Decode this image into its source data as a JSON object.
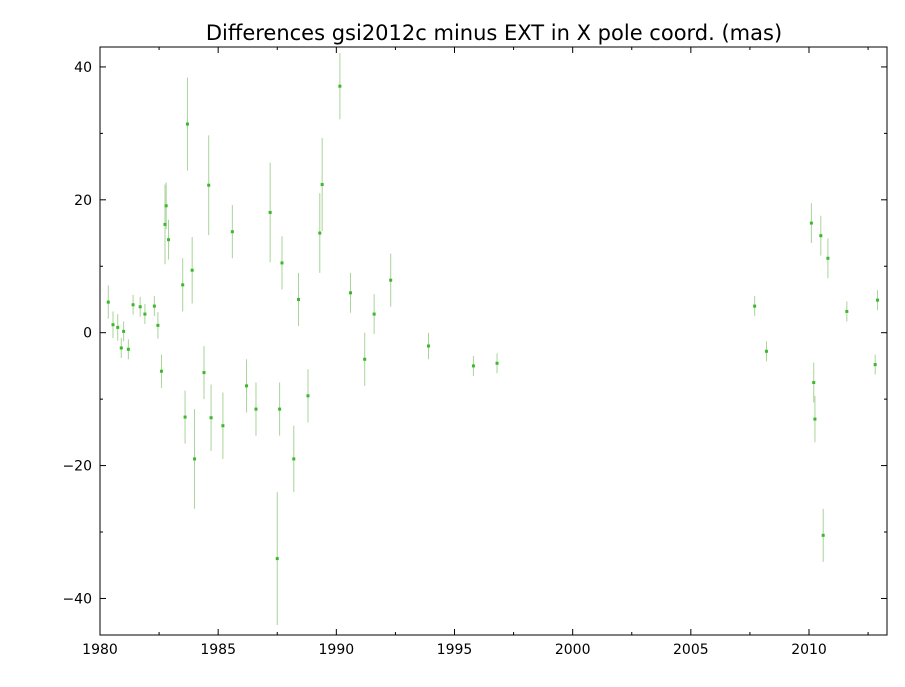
{
  "chart_data": {
    "type": "scatter",
    "title": "Differences gsi2012c minus EXT in X pole coord. (mas)",
    "xlabel": "",
    "ylabel": "",
    "xlim": [
      1980,
      2013.3
    ],
    "ylim": [
      -45.5,
      43
    ],
    "grid": false,
    "legend": "none",
    "x_ticks": [
      1980,
      1985,
      1990,
      1995,
      2000,
      2005,
      2010
    ],
    "y_ticks": [
      -40,
      -20,
      0,
      20,
      40
    ],
    "x_tick_labels": [
      "1980",
      "1985",
      "1990",
      "1995",
      "2000",
      "2005",
      "2010"
    ],
    "y_tick_labels": [
      "−40",
      "−20",
      "0",
      "20",
      "40"
    ],
    "point_color": "#3cb82c",
    "errorbar_color": "#a9d39a",
    "series": [
      {
        "points": [
          {
            "x": 1980.35,
            "y": 4.6,
            "err": 2.5
          },
          {
            "x": 1980.55,
            "y": 1.2,
            "err": 2.0
          },
          {
            "x": 1980.75,
            "y": 0.8,
            "err": 2.0
          },
          {
            "x": 1980.9,
            "y": -2.3,
            "err": 1.5
          },
          {
            "x": 1981.0,
            "y": 0.2,
            "err": 1.5
          },
          {
            "x": 1981.2,
            "y": -2.5,
            "err": 1.5
          },
          {
            "x": 1981.4,
            "y": 4.2,
            "err": 1.5
          },
          {
            "x": 1981.7,
            "y": 3.9,
            "err": 1.5
          },
          {
            "x": 1981.9,
            "y": 2.8,
            "err": 1.5
          },
          {
            "x": 1982.3,
            "y": 4.0,
            "err": 1.5
          },
          {
            "x": 1982.45,
            "y": 1.1,
            "err": 2.0
          },
          {
            "x": 1982.6,
            "y": -5.8,
            "err": 2.5
          },
          {
            "x": 1982.75,
            "y": 16.3,
            "err": 6.0
          },
          {
            "x": 1982.8,
            "y": 19.1,
            "err": 3.5
          },
          {
            "x": 1982.9,
            "y": 14.0,
            "err": 3.0
          },
          {
            "x": 1983.5,
            "y": 7.2,
            "err": 4.0
          },
          {
            "x": 1983.6,
            "y": -12.7,
            "err": 4.0
          },
          {
            "x": 1983.7,
            "y": 31.4,
            "err": 7.0
          },
          {
            "x": 1983.9,
            "y": 9.4,
            "err": 5.0
          },
          {
            "x": 1984.0,
            "y": -19.0,
            "err": 7.5
          },
          {
            "x": 1984.4,
            "y": -6.0,
            "err": 4.0
          },
          {
            "x": 1984.6,
            "y": 22.2,
            "err": 7.5
          },
          {
            "x": 1984.7,
            "y": -12.8,
            "err": 5.0
          },
          {
            "x": 1985.2,
            "y": -14.0,
            "err": 5.0
          },
          {
            "x": 1985.6,
            "y": 15.2,
            "err": 4.0
          },
          {
            "x": 1986.2,
            "y": -8.0,
            "err": 4.0
          },
          {
            "x": 1986.6,
            "y": -11.5,
            "err": 4.0
          },
          {
            "x": 1987.2,
            "y": 18.1,
            "err": 7.5
          },
          {
            "x": 1987.5,
            "y": -34.0,
            "err": 10.0
          },
          {
            "x": 1987.6,
            "y": -11.5,
            "err": 4.0
          },
          {
            "x": 1987.7,
            "y": 10.5,
            "err": 4.0
          },
          {
            "x": 1988.2,
            "y": -19.0,
            "err": 5.0
          },
          {
            "x": 1988.4,
            "y": 5.0,
            "err": 4.0
          },
          {
            "x": 1988.8,
            "y": -9.5,
            "err": 4.0
          },
          {
            "x": 1989.3,
            "y": 15.0,
            "err": 6.0
          },
          {
            "x": 1989.4,
            "y": 22.3,
            "err": 7.0
          },
          {
            "x": 1990.15,
            "y": 37.1,
            "err": 5.0
          },
          {
            "x": 1990.6,
            "y": 6.0,
            "err": 3.0
          },
          {
            "x": 1991.2,
            "y": -4.0,
            "err": 4.0
          },
          {
            "x": 1991.6,
            "y": 2.8,
            "err": 3.0
          },
          {
            "x": 1992.3,
            "y": 7.9,
            "err": 4.0
          },
          {
            "x": 1993.9,
            "y": -2.0,
            "err": 2.0
          },
          {
            "x": 1995.8,
            "y": -5.0,
            "err": 1.5
          },
          {
            "x": 1996.8,
            "y": -4.6,
            "err": 1.5
          },
          {
            "x": 2007.7,
            "y": 4.0,
            "err": 1.5
          },
          {
            "x": 2008.2,
            "y": -2.8,
            "err": 1.5
          },
          {
            "x": 2010.1,
            "y": 16.5,
            "err": 3.0
          },
          {
            "x": 2010.2,
            "y": -7.5,
            "err": 3.0
          },
          {
            "x": 2010.25,
            "y": -13.0,
            "err": 3.5
          },
          {
            "x": 2010.5,
            "y": 14.6,
            "err": 3.0
          },
          {
            "x": 2010.6,
            "y": -30.5,
            "err": 4.0
          },
          {
            "x": 2010.8,
            "y": 11.2,
            "err": 3.0
          },
          {
            "x": 2011.6,
            "y": 3.2,
            "err": 1.5
          },
          {
            "x": 2012.8,
            "y": -4.8,
            "err": 1.5
          },
          {
            "x": 2012.9,
            "y": 4.9,
            "err": 1.5
          }
        ]
      }
    ]
  }
}
